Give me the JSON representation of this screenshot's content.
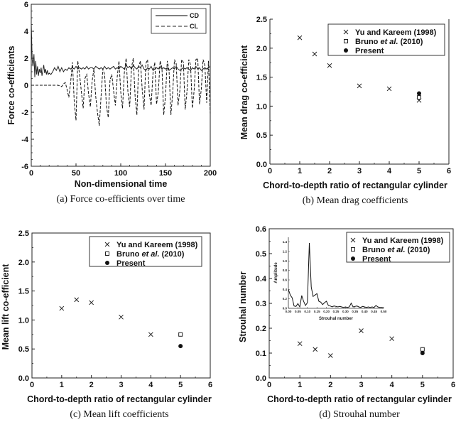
{
  "chart_data": [
    {
      "id": "a",
      "type": "line",
      "title": "",
      "caption": "(a) Force co-efficients over time",
      "xlabel": "Non-dimensional time",
      "ylabel": "Force co-efficients",
      "xlim": [
        0,
        200
      ],
      "ylim": [
        -6,
        6
      ],
      "xticks": [
        0,
        50,
        100,
        150,
        200
      ],
      "yticks": [
        -6,
        -4,
        -2,
        0,
        2,
        4,
        6
      ],
      "grid": false,
      "legend": "top-right",
      "series": [
        {
          "name": "CD",
          "style": "solid",
          "x": [
            0,
            1,
            2,
            3,
            4,
            5,
            6,
            7,
            8,
            9,
            10,
            11,
            12,
            13,
            14,
            15,
            16,
            17,
            18,
            19,
            20,
            22,
            24,
            26,
            28,
            30,
            32,
            34,
            36,
            38,
            40,
            42,
            44,
            46,
            48,
            50,
            52,
            54,
            56,
            58,
            60,
            62,
            64,
            66,
            68,
            70,
            72,
            74,
            76,
            78,
            80,
            82,
            84,
            86,
            88,
            90,
            92,
            94,
            96,
            98,
            100,
            102,
            104,
            106,
            108,
            110,
            112,
            114,
            116,
            118,
            120,
            122,
            124,
            126,
            128,
            130,
            132,
            134,
            136,
            138,
            140,
            142,
            144,
            146,
            148,
            150,
            152,
            154,
            156,
            158,
            160,
            162,
            164,
            166,
            168,
            170,
            172,
            174,
            176,
            178,
            180,
            182,
            184,
            186,
            188,
            190,
            192,
            194,
            196,
            198,
            200
          ],
          "y": [
            4.6,
            1.9,
            1.4,
            2.3,
            0.6,
            1.8,
            0.8,
            1.4,
            0.7,
            1.2,
            0.9,
            1.3,
            0.7,
            1.1,
            1.5,
            0.9,
            1.2,
            0.8,
            1.1,
            0.8,
            0.9,
            0.8,
            1.0,
            1.3,
            1.1,
            1.4,
            1.0,
            1.3,
            1.0,
            1.2,
            1.1,
            1.3,
            1.2,
            1.3,
            1.2,
            1.4,
            1.2,
            1.3,
            1.2,
            1.3,
            1.2,
            1.4,
            1.2,
            1.3,
            1.3,
            1.2,
            1.4,
            1.3,
            1.2,
            1.3,
            1.2,
            1.4,
            1.2,
            1.3,
            1.2,
            1.3,
            1.4,
            1.2,
            1.3,
            1.2,
            1.4,
            1.3,
            1.2,
            1.5,
            1.3,
            1.4,
            1.2,
            1.5,
            1.3,
            1.2,
            1.4,
            1.3,
            1.5,
            1.2,
            1.1,
            1.3,
            1.2,
            1.4,
            1.1,
            1.2,
            1.3,
            1.2,
            1.4,
            1.2,
            1.3,
            1.2,
            1.3,
            1.1,
            1.2,
            1.3,
            1.2,
            1.4,
            1.2,
            1.1,
            1.2,
            1.3,
            1.2,
            1.3,
            1.2,
            1.1,
            1.3,
            1.2,
            1.4,
            1.2,
            1.3,
            1.1,
            1.2,
            1.3,
            1.2,
            1.3,
            1.4
          ]
        },
        {
          "name": "CL",
          "style": "dashed",
          "x": [
            0,
            10,
            20,
            30,
            34,
            36,
            38,
            40,
            42,
            44,
            46,
            48,
            50,
            52,
            54,
            56,
            58,
            60,
            62,
            64,
            66,
            68,
            70,
            72,
            74,
            76,
            78,
            80,
            82,
            84,
            86,
            88,
            90,
            92,
            94,
            96,
            98,
            100,
            102,
            104,
            106,
            108,
            110,
            112,
            114,
            116,
            118,
            120,
            122,
            124,
            126,
            128,
            130,
            132,
            134,
            136,
            138,
            140,
            142,
            144,
            146,
            148,
            150,
            152,
            154,
            156,
            158,
            160,
            162,
            164,
            166,
            168,
            170,
            172,
            174,
            176,
            178,
            180,
            182,
            184,
            186,
            188,
            190,
            192,
            194,
            196,
            198,
            200
          ],
          "y": [
            0,
            0,
            0,
            0,
            -0.1,
            0.1,
            0.2,
            -0.3,
            -0.9,
            0.2,
            1.7,
            -1.2,
            -2.6,
            1.8,
            0.8,
            -0.5,
            -1.7,
            0.5,
            0.8,
            -0.6,
            -1.6,
            0.3,
            1.2,
            -0.8,
            -2.0,
            -3.0,
            -0.8,
            1.2,
            0.8,
            -1.5,
            -2.4,
            0.4,
            0.8,
            -0.4,
            -1.5,
            0.6,
            1.8,
            -0.5,
            -1.7,
            0.9,
            2.0,
            -0.5,
            -1.6,
            1.3,
            2.0,
            -0.8,
            -2.2,
            1.4,
            1.8,
            -0.3,
            -1.8,
            1.6,
            1.9,
            -0.7,
            -1.5,
            0.9,
            1.7,
            -1.4,
            -0.5,
            1.8,
            1.3,
            -2.2,
            -0.8,
            1.8,
            1.1,
            -2.2,
            -0.6,
            1.9,
            1.6,
            -1.5,
            -0.4,
            1.9,
            1.7,
            -1.8,
            -0.5,
            1.9,
            1.5,
            -1.7,
            -0.4,
            1.9,
            2.0,
            -1.4,
            -0.3,
            1.9,
            1.5,
            -1.3,
            1.8,
            -2.1
          ]
        }
      ]
    },
    {
      "id": "b",
      "type": "scatter",
      "caption": "(b) Mean drag coefficients",
      "xlabel": "Chord-to-depth ratio of rectangular cylinder",
      "ylabel": "Mean drag co-efficient",
      "xlim": [
        0,
        6
      ],
      "ylim": [
        0.0,
        2.5
      ],
      "xticks": [
        0,
        1,
        2,
        3,
        4,
        5,
        6
      ],
      "yticks": [
        "0.0",
        "0.5",
        "1.0",
        "1.5",
        "2.0",
        "2.5"
      ],
      "grid": false,
      "legend": "top-right",
      "series": [
        {
          "name": "Yu and Kareem (1998)",
          "marker": "x",
          "x": [
            1,
            1.5,
            2,
            3,
            4,
            5
          ],
          "y": [
            2.18,
            1.9,
            1.7,
            1.35,
            1.3,
            1.1
          ]
        },
        {
          "name": "Bruno et al. (2010)",
          "marker": "square",
          "x": [
            5
          ],
          "y": [
            1.15
          ]
        },
        {
          "name": "Present",
          "marker": "dot",
          "x": [
            5
          ],
          "y": [
            1.22
          ]
        }
      ]
    },
    {
      "id": "c",
      "type": "scatter",
      "caption": "(c) Mean lift coefficients",
      "xlabel": "Chord-to-depth ratio of rectangular cylinder",
      "ylabel": "Mean lift co-efficient",
      "xlim": [
        0,
        6
      ],
      "ylim": [
        0.0,
        2.5
      ],
      "xticks": [
        0,
        1,
        2,
        3,
        4,
        5,
        6
      ],
      "yticks": [
        "0.0",
        "0.5",
        "1.0",
        "1.5",
        "2.0",
        "2.5"
      ],
      "grid": false,
      "legend": "top-right",
      "series": [
        {
          "name": "Yu and Kareem (1998)",
          "marker": "x",
          "x": [
            1,
            1.5,
            2,
            3,
            4
          ],
          "y": [
            1.2,
            1.35,
            1.3,
            1.05,
            0.75
          ]
        },
        {
          "name": "Bruno et al. (2010)",
          "marker": "square",
          "x": [
            5
          ],
          "y": [
            0.75
          ]
        },
        {
          "name": "Present",
          "marker": "dot",
          "x": [
            5
          ],
          "y": [
            0.55
          ]
        }
      ]
    },
    {
      "id": "d",
      "type": "scatter",
      "caption": "(d) Strouhal number",
      "xlabel": "Chord-to-depth ratio of rectangular cylinder",
      "ylabel": "Strouhal number",
      "xlim": [
        0,
        6
      ],
      "ylim": [
        0.0,
        0.6
      ],
      "xticks": [
        0,
        1,
        2,
        3,
        4,
        5,
        6
      ],
      "yticks": [
        "0.0",
        "0.1",
        "0.2",
        "0.3",
        "0.4",
        "0.5",
        "0.6"
      ],
      "grid": false,
      "legend": "top-right",
      "series": [
        {
          "name": "Yu and Kareem (1998)",
          "marker": "x",
          "x": [
            1,
            1.5,
            2,
            3,
            4
          ],
          "y": [
            0.138,
            0.115,
            0.09,
            0.19,
            0.158
          ]
        },
        {
          "name": "Bruno et al. (2010)",
          "marker": "square",
          "x": [
            5
          ],
          "y": [
            0.115
          ]
        },
        {
          "name": "Present",
          "marker": "dot",
          "x": [
            5
          ],
          "y": [
            0.1
          ]
        }
      ],
      "inset": {
        "type": "line",
        "xlabel": "Strouhal number",
        "ylabel": "Amplitude",
        "xlim": [
          0.0,
          0.5
        ],
        "ylim": [
          0.0,
          1.5
        ],
        "xticks": [
          "0.00",
          "0.05",
          "0.10",
          "0.15",
          "0.20",
          "0.25",
          "0.30",
          "0.35",
          "0.40",
          "0.45",
          "0.50"
        ],
        "yticks": [
          "0.0",
          "0.2",
          "0.4",
          "0.6",
          "0.8",
          "1.0",
          "1.2",
          "1.4"
        ],
        "x": [
          0.0,
          0.01,
          0.02,
          0.03,
          0.04,
          0.05,
          0.06,
          0.07,
          0.08,
          0.09,
          0.1,
          0.11,
          0.12,
          0.13,
          0.14,
          0.15,
          0.16,
          0.17,
          0.18,
          0.19,
          0.2,
          0.21,
          0.22,
          0.23,
          0.24,
          0.25,
          0.26,
          0.27,
          0.28,
          0.29,
          0.3,
          0.31,
          0.32,
          0.33,
          0.34,
          0.35,
          0.36,
          0.37,
          0.38,
          0.39,
          0.4,
          0.41,
          0.42,
          0.43,
          0.44,
          0.45,
          0.46,
          0.47,
          0.48,
          0.49,
          0.5
        ],
        "y": [
          0.4,
          0.28,
          0.22,
          0.05,
          0.04,
          0.1,
          0.03,
          0.27,
          0.15,
          0.06,
          0.12,
          1.38,
          0.45,
          0.25,
          0.28,
          0.31,
          0.15,
          0.13,
          0.08,
          0.12,
          0.15,
          0.06,
          0.05,
          0.03,
          0.05,
          0.04,
          0.03,
          0.04,
          0.03,
          0.02,
          0.03,
          0.02,
          0.03,
          0.11,
          0.03,
          0.04,
          0.05,
          0.03,
          0.02,
          0.04,
          0.03,
          0.02,
          0.03,
          0.02,
          0.03,
          0.02,
          0.06,
          0.03,
          0.02,
          0.02,
          0.01
        ]
      }
    }
  ],
  "legend_labels": {
    "yu": "Yu and Kareem (1998)",
    "bruno_pre": "Bruno ",
    "bruno_italic": "et al.",
    "bruno_post": " (2010)",
    "present": "Present",
    "cd": "CD",
    "cl": "CL"
  }
}
